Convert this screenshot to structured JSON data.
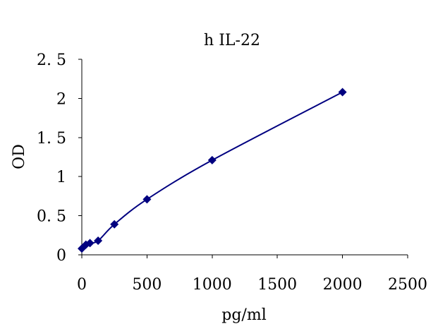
{
  "chart_data": {
    "type": "scatter",
    "title": "h IL-22",
    "xlabel": "pg/ml",
    "ylabel": "OD",
    "xlim": [
      0,
      2500
    ],
    "ylim": [
      0,
      2.5
    ],
    "x_ticks": [
      0,
      500,
      1000,
      1500,
      2000,
      2500
    ],
    "y_ticks": [
      0,
      0.5,
      1,
      1.5,
      2,
      2.5
    ],
    "x_tick_labels": [
      "0",
      "500",
      "1000",
      "1500",
      "2000",
      "2500"
    ],
    "y_tick_labels": [
      "0",
      "0. 5",
      "1",
      "1. 5",
      "2",
      "2. 5"
    ],
    "grid": false,
    "legend": "none",
    "trendline": "smooth",
    "series": [
      {
        "marker": "diamond",
        "color": "#000080",
        "x": [
          0,
          31.25,
          62.5,
          125,
          250,
          500,
          1000,
          2000
        ],
        "y": [
          0.08,
          0.13,
          0.15,
          0.18,
          0.39,
          0.71,
          1.21,
          2.08
        ]
      }
    ]
  }
}
